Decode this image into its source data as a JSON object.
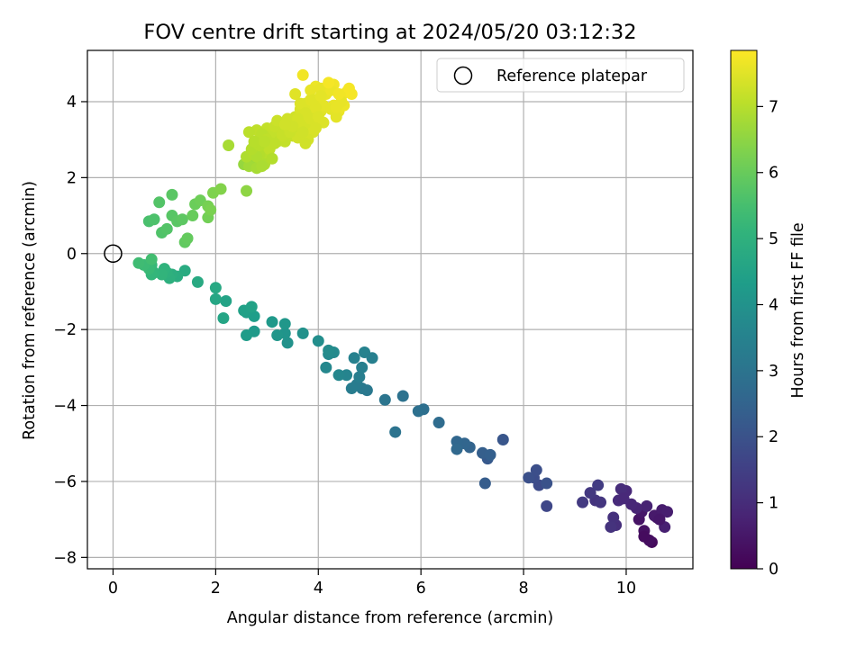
{
  "chart_data": {
    "type": "scatter",
    "title": "FOV centre drift starting at 2024/05/20 03:12:32",
    "xlabel": "Angular distance from reference (arcmin)",
    "ylabel": "Rotation from reference (arcmin)",
    "xlim": [
      -0.5,
      11.3
    ],
    "ylim": [
      -8.3,
      5.35
    ],
    "xticks": [
      0,
      2,
      4,
      6,
      8,
      10
    ],
    "yticks": [
      -8,
      -6,
      -4,
      -2,
      0,
      2,
      4
    ],
    "grid": true,
    "legend": {
      "position": "top-right",
      "entries": [
        "Reference platepar"
      ]
    },
    "reference_point": {
      "name": "Reference platepar",
      "x": 0,
      "y": 0,
      "marker": "open-circle"
    },
    "colorbar": {
      "label": "Hours from first FF file",
      "range": [
        0,
        7.85
      ],
      "ticks": [
        0,
        1,
        2,
        3,
        4,
        5,
        6,
        7
      ],
      "colormap": "viridis"
    },
    "colors": {
      "viridis": [
        "#440154",
        "#482878",
        "#3e4989",
        "#31688e",
        "#26828e",
        "#1f9e89",
        "#35b779",
        "#6ece58",
        "#b5de2b",
        "#fde725"
      ],
      "grid": "#b0b0b0",
      "axis": "#000000"
    },
    "series": [
      {
        "points": [
          [
            10.5,
            -7.6,
            0.2
          ],
          [
            10.45,
            -7.55,
            0.3
          ],
          [
            10.35,
            -7.3,
            0.35
          ],
          [
            10.25,
            -7.0,
            0.4
          ],
          [
            10.6,
            -6.95,
            0.45
          ],
          [
            10.3,
            -6.8,
            0.5
          ],
          [
            10.55,
            -6.9,
            0.55
          ],
          [
            10.7,
            -6.75,
            0.6
          ],
          [
            10.8,
            -6.8,
            0.65
          ],
          [
            10.75,
            -7.2,
            0.7
          ],
          [
            10.4,
            -6.65,
            0.75
          ],
          [
            10.2,
            -6.7,
            0.8
          ],
          [
            10.1,
            -6.6,
            0.85
          ],
          [
            10.0,
            -6.25,
            0.9
          ],
          [
            9.85,
            -6.5,
            0.95
          ],
          [
            9.9,
            -6.2,
            1.0
          ],
          [
            9.8,
            -7.15,
            1.05
          ],
          [
            9.75,
            -6.95,
            1.1
          ],
          [
            9.7,
            -7.2,
            1.15
          ],
          [
            9.4,
            -6.5,
            1.2
          ],
          [
            9.5,
            -6.55,
            1.25
          ],
          [
            9.3,
            -6.3,
            1.3
          ],
          [
            9.15,
            -6.55,
            1.35
          ],
          [
            9.45,
            -6.1,
            1.4
          ],
          [
            10.35,
            -7.45,
            0.25
          ],
          [
            10.65,
            -7.0,
            0.5
          ],
          [
            9.95,
            -6.45,
            0.9
          ],
          [
            8.45,
            -6.65,
            1.7
          ],
          [
            8.3,
            -6.1,
            1.8
          ],
          [
            8.2,
            -5.9,
            1.85
          ],
          [
            8.25,
            -5.7,
            1.9
          ],
          [
            8.1,
            -5.9,
            1.95
          ],
          [
            8.45,
            -6.05,
            2.0
          ],
          [
            7.6,
            -4.9,
            2.1
          ],
          [
            7.3,
            -5.4,
            2.2
          ],
          [
            7.25,
            -6.05,
            2.3
          ],
          [
            7.2,
            -5.25,
            2.35
          ],
          [
            7.35,
            -5.3,
            2.4
          ],
          [
            6.95,
            -5.1,
            2.5
          ],
          [
            6.85,
            -5.0,
            2.55
          ],
          [
            6.7,
            -4.95,
            2.6
          ],
          [
            6.7,
            -5.15,
            2.65
          ],
          [
            6.35,
            -4.45,
            2.75
          ],
          [
            6.05,
            -4.1,
            2.85
          ],
          [
            5.95,
            -4.15,
            2.9
          ],
          [
            5.65,
            -3.75,
            2.95
          ],
          [
            5.5,
            -4.7,
            3.0
          ],
          [
            5.3,
            -3.85,
            3.05
          ],
          [
            4.95,
            -3.6,
            3.15
          ],
          [
            4.85,
            -3.55,
            3.2
          ],
          [
            4.75,
            -3.45,
            3.25
          ],
          [
            4.65,
            -3.55,
            3.3
          ],
          [
            4.8,
            -3.25,
            3.35
          ],
          [
            4.85,
            -3.0,
            3.4
          ],
          [
            4.7,
            -2.75,
            3.45
          ],
          [
            4.9,
            -2.6,
            3.5
          ],
          [
            5.05,
            -2.75,
            3.4
          ],
          [
            4.55,
            -3.2,
            3.55
          ],
          [
            4.4,
            -3.2,
            3.6
          ],
          [
            4.15,
            -3.0,
            3.65
          ],
          [
            4.2,
            -2.65,
            3.7
          ],
          [
            4.3,
            -2.6,
            3.75
          ],
          [
            4.2,
            -2.55,
            3.8
          ],
          [
            4.0,
            -2.3,
            3.85
          ],
          [
            3.7,
            -2.1,
            3.95
          ],
          [
            3.4,
            -2.35,
            4.0
          ],
          [
            3.35,
            -2.1,
            4.05
          ],
          [
            3.2,
            -2.15,
            4.1
          ],
          [
            3.35,
            -1.85,
            4.15
          ],
          [
            3.1,
            -1.8,
            4.2
          ],
          [
            2.75,
            -2.05,
            4.25
          ],
          [
            2.6,
            -2.15,
            4.3
          ],
          [
            2.75,
            -1.65,
            4.35
          ],
          [
            2.6,
            -1.55,
            4.4
          ],
          [
            2.55,
            -1.5,
            4.45
          ],
          [
            2.7,
            -1.4,
            4.5
          ],
          [
            2.2,
            -1.25,
            4.55
          ],
          [
            2.15,
            -1.7,
            4.6
          ],
          [
            2.0,
            -1.2,
            4.65
          ],
          [
            2.0,
            -0.9,
            4.7
          ],
          [
            1.65,
            -0.75,
            4.75
          ],
          [
            1.4,
            -0.45,
            4.8
          ],
          [
            1.25,
            -0.6,
            4.85
          ],
          [
            1.15,
            -0.55,
            4.9
          ],
          [
            1.1,
            -0.65,
            4.95
          ],
          [
            1.05,
            -0.5,
            5.0
          ],
          [
            1.0,
            -0.4,
            5.05
          ],
          [
            0.95,
            -0.55,
            5.1
          ],
          [
            0.8,
            -0.5,
            5.15
          ],
          [
            0.75,
            -0.55,
            5.2
          ],
          [
            0.75,
            -0.3,
            5.25
          ],
          [
            0.7,
            -0.4,
            5.3
          ],
          [
            0.6,
            -0.3,
            5.35
          ],
          [
            0.5,
            -0.25,
            5.4
          ],
          [
            0.75,
            -0.15,
            5.45
          ],
          [
            0.7,
            0.85,
            5.55
          ],
          [
            0.8,
            0.9,
            5.6
          ],
          [
            0.95,
            0.55,
            5.65
          ],
          [
            1.05,
            0.65,
            5.7
          ],
          [
            1.15,
            1.0,
            5.75
          ],
          [
            1.25,
            0.85,
            5.8
          ],
          [
            1.35,
            0.9,
            5.85
          ],
          [
            1.4,
            0.3,
            5.9
          ],
          [
            1.45,
            0.4,
            5.95
          ],
          [
            1.55,
            1.0,
            6.0
          ],
          [
            1.6,
            1.3,
            6.05
          ],
          [
            1.7,
            1.4,
            6.1
          ],
          [
            1.85,
            0.95,
            6.15
          ],
          [
            1.85,
            1.25,
            6.2
          ],
          [
            1.9,
            1.15,
            6.25
          ],
          [
            1.95,
            1.6,
            6.3
          ],
          [
            2.1,
            1.7,
            6.35
          ],
          [
            1.15,
            1.55,
            5.8
          ],
          [
            0.9,
            1.35,
            5.7
          ],
          [
            2.6,
            1.65,
            6.5
          ],
          [
            2.55,
            2.35,
            6.6
          ],
          [
            2.7,
            2.4,
            6.7
          ],
          [
            2.65,
            2.3,
            6.75
          ],
          [
            2.8,
            2.25,
            6.8
          ],
          [
            2.9,
            2.45,
            6.85
          ],
          [
            2.6,
            2.55,
            6.9
          ],
          [
            2.75,
            2.85,
            6.95
          ],
          [
            2.9,
            2.7,
            7.0
          ],
          [
            3.0,
            2.85,
            7.05
          ],
          [
            2.95,
            2.55,
            7.0
          ],
          [
            2.85,
            3.0,
            7.1
          ],
          [
            3.1,
            3.0,
            7.05
          ],
          [
            3.15,
            3.2,
            7.15
          ],
          [
            3.3,
            3.25,
            7.2
          ],
          [
            3.0,
            3.3,
            7.15
          ],
          [
            2.8,
            3.25,
            7.1
          ],
          [
            2.65,
            3.2,
            7.05
          ],
          [
            2.25,
            2.85,
            6.8
          ],
          [
            2.85,
            2.6,
            6.95
          ],
          [
            3.2,
            2.95,
            7.1
          ],
          [
            3.35,
            2.95,
            7.15
          ],
          [
            3.5,
            3.1,
            7.2
          ],
          [
            3.6,
            3.25,
            7.25
          ],
          [
            3.45,
            3.45,
            7.3
          ],
          [
            3.55,
            3.6,
            7.3
          ],
          [
            3.7,
            3.5,
            7.35
          ],
          [
            3.8,
            3.45,
            7.4
          ],
          [
            3.25,
            3.4,
            7.25
          ],
          [
            3.35,
            3.35,
            7.3
          ],
          [
            3.75,
            3.3,
            7.35
          ],
          [
            3.6,
            3.05,
            7.3
          ],
          [
            3.9,
            3.2,
            7.4
          ],
          [
            3.8,
            3.0,
            7.35
          ],
          [
            3.75,
            2.9,
            7.3
          ],
          [
            3.95,
            3.55,
            7.45
          ],
          [
            3.85,
            3.8,
            7.45
          ],
          [
            4.05,
            3.75,
            7.5
          ],
          [
            3.65,
            3.8,
            7.4
          ],
          [
            3.75,
            3.95,
            7.45
          ],
          [
            3.85,
            4.05,
            7.5
          ],
          [
            4.0,
            4.0,
            7.55
          ],
          [
            4.1,
            3.9,
            7.55
          ],
          [
            4.15,
            4.2,
            7.6
          ],
          [
            4.3,
            3.9,
            7.6
          ],
          [
            4.4,
            3.75,
            7.65
          ],
          [
            4.5,
            3.9,
            7.65
          ],
          [
            4.45,
            4.15,
            7.7
          ],
          [
            4.55,
            4.25,
            7.7
          ],
          [
            4.65,
            4.2,
            7.75
          ],
          [
            4.6,
            4.35,
            7.75
          ],
          [
            4.3,
            4.45,
            7.7
          ],
          [
            4.2,
            4.45,
            7.7
          ],
          [
            4.1,
            4.3,
            7.65
          ],
          [
            3.95,
            4.4,
            7.65
          ],
          [
            3.85,
            4.3,
            7.6
          ],
          [
            3.7,
            4.7,
            7.7
          ],
          [
            4.05,
            4.35,
            7.6
          ],
          [
            3.95,
            3.85,
            7.5
          ],
          [
            4.25,
            3.8,
            7.55
          ],
          [
            4.35,
            3.6,
            7.55
          ],
          [
            4.45,
            4.0,
            7.6
          ],
          [
            4.25,
            4.3,
            7.65
          ],
          [
            4.2,
            4.5,
            7.75
          ],
          [
            4.35,
            3.85,
            7.6
          ],
          [
            4.4,
            4.2,
            7.7
          ],
          [
            3.65,
            3.95,
            7.45
          ],
          [
            3.55,
            4.2,
            7.5
          ],
          [
            3.3,
            3.1,
            7.2
          ],
          [
            3.05,
            3.1,
            7.15
          ],
          [
            2.95,
            3.1,
            7.1
          ],
          [
            2.9,
            3.15,
            7.05
          ],
          [
            3.15,
            3.35,
            7.2
          ],
          [
            3.05,
            2.75,
            7.1
          ],
          [
            2.75,
            2.6,
            6.95
          ],
          [
            2.95,
            2.35,
            6.9
          ],
          [
            2.8,
            2.55,
            6.9
          ],
          [
            2.7,
            2.75,
            6.95
          ],
          [
            2.85,
            2.85,
            7.0
          ],
          [
            2.75,
            2.95,
            7.0
          ],
          [
            3.2,
            3.5,
            7.25
          ],
          [
            3.4,
            3.55,
            7.3
          ],
          [
            3.3,
            3.15,
            7.2
          ],
          [
            3.15,
            2.9,
            7.1
          ],
          [
            3.45,
            3.2,
            7.25
          ],
          [
            3.65,
            3.4,
            7.35
          ],
          [
            3.75,
            3.7,
            7.4
          ],
          [
            3.85,
            3.55,
            7.4
          ],
          [
            4.0,
            3.6,
            7.45
          ],
          [
            4.1,
            3.45,
            7.45
          ],
          [
            3.95,
            3.3,
            7.4
          ],
          [
            3.9,
            4.05,
            7.5
          ],
          [
            4.05,
            4.15,
            7.55
          ],
          [
            3.6,
            3.55,
            7.35
          ],
          [
            3.5,
            3.35,
            7.3
          ],
          [
            3.7,
            3.2,
            7.3
          ],
          [
            2.9,
            2.3,
            6.85
          ],
          [
            3.1,
            2.5,
            6.95
          ],
          [
            3.0,
            3.0,
            7.1
          ],
          [
            2.95,
            2.95,
            7.05
          ],
          [
            3.35,
            3.4,
            7.3
          ]
        ]
      }
    ]
  }
}
